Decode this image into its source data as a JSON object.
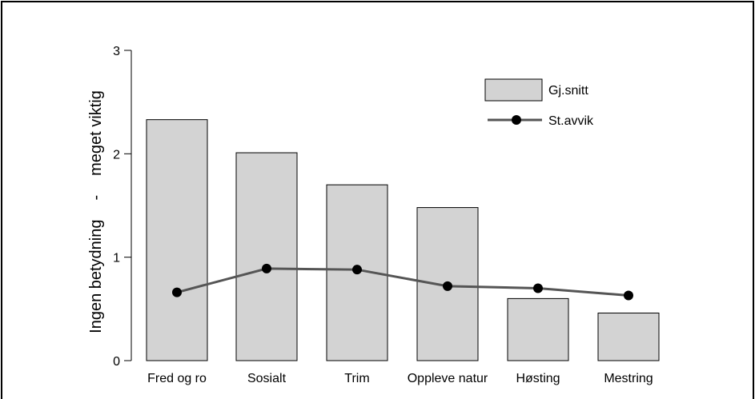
{
  "chart_data": {
    "type": "bar",
    "title": "",
    "xlabel": "",
    "ylabel_left": "Ingen betydning",
    "ylabel_separator": "-",
    "ylabel_right": "meget viktig",
    "ylim": [
      0,
      3
    ],
    "yticks": [
      "0",
      "1",
      "2",
      "3"
    ],
    "categories": [
      "Fred og ro",
      "Sosialt",
      "Trim",
      "Oppleve natur",
      "Høsting",
      "Mestring"
    ],
    "series": [
      {
        "name": "Gj.snitt",
        "kind": "bar",
        "color": "#d3d3d3",
        "values": [
          2.33,
          2.01,
          1.7,
          1.48,
          0.6,
          0.46
        ]
      },
      {
        "name": "St.avvik",
        "kind": "line",
        "color": "#555555",
        "values": [
          0.66,
          0.89,
          0.88,
          0.72,
          0.7,
          0.63
        ]
      }
    ],
    "grid": false,
    "legend_position": "top-right"
  }
}
